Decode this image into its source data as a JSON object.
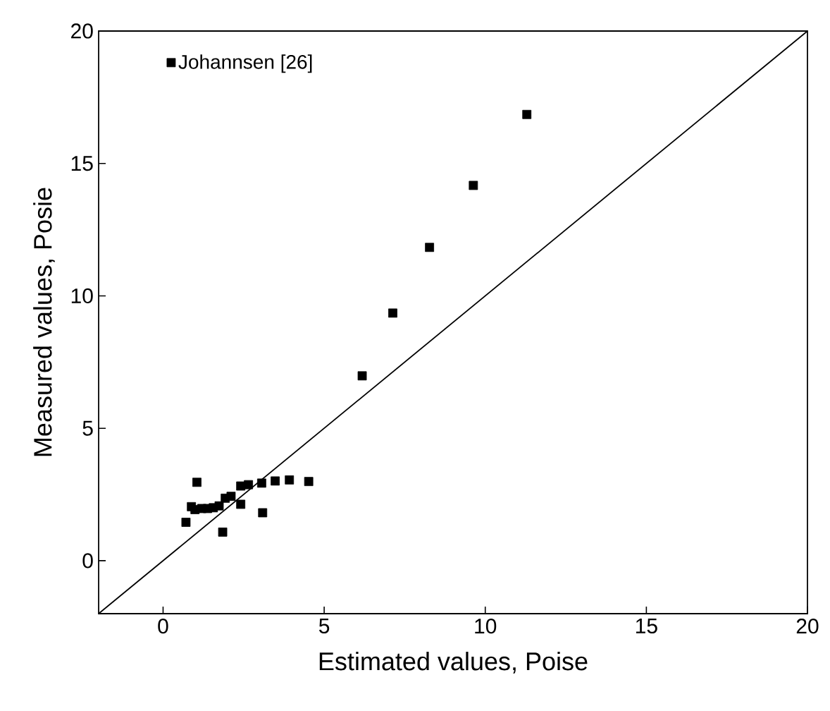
{
  "chart_data": {
    "type": "scatter",
    "xlabel": "Estimated values, Poise",
    "ylabel": "Measured values, Posie",
    "xlim": [
      -2,
      20
    ],
    "ylim": [
      -2,
      20
    ],
    "xticks": [
      0,
      5,
      10,
      15,
      20
    ],
    "yticks": [
      0,
      5,
      10,
      15,
      20
    ],
    "legend": "top left",
    "series": [
      {
        "name": "Johannsen [26]",
        "marker": "square",
        "color": "#000000",
        "x": [
          0.71,
          0.88,
          0.99,
          1.05,
          1.2,
          1.38,
          1.56,
          1.74,
          1.85,
          1.93,
          2.11,
          2.41,
          2.41,
          2.65,
          3.06,
          3.09,
          3.48,
          3.92,
          4.52,
          6.18,
          7.13,
          8.27,
          9.63,
          11.29
        ],
        "values": [
          1.45,
          2.04,
          1.93,
          2.96,
          1.97,
          1.97,
          2.0,
          2.07,
          1.08,
          2.36,
          2.43,
          2.13,
          2.82,
          2.87,
          2.93,
          1.81,
          3.01,
          3.05,
          2.99,
          6.98,
          9.35,
          11.83,
          14.17,
          16.85
        ]
      },
      {
        "type": "line",
        "marker": "none",
        "color": "#000000",
        "x": [
          -2,
          20
        ],
        "values": [
          -2,
          20
        ]
      }
    ]
  }
}
